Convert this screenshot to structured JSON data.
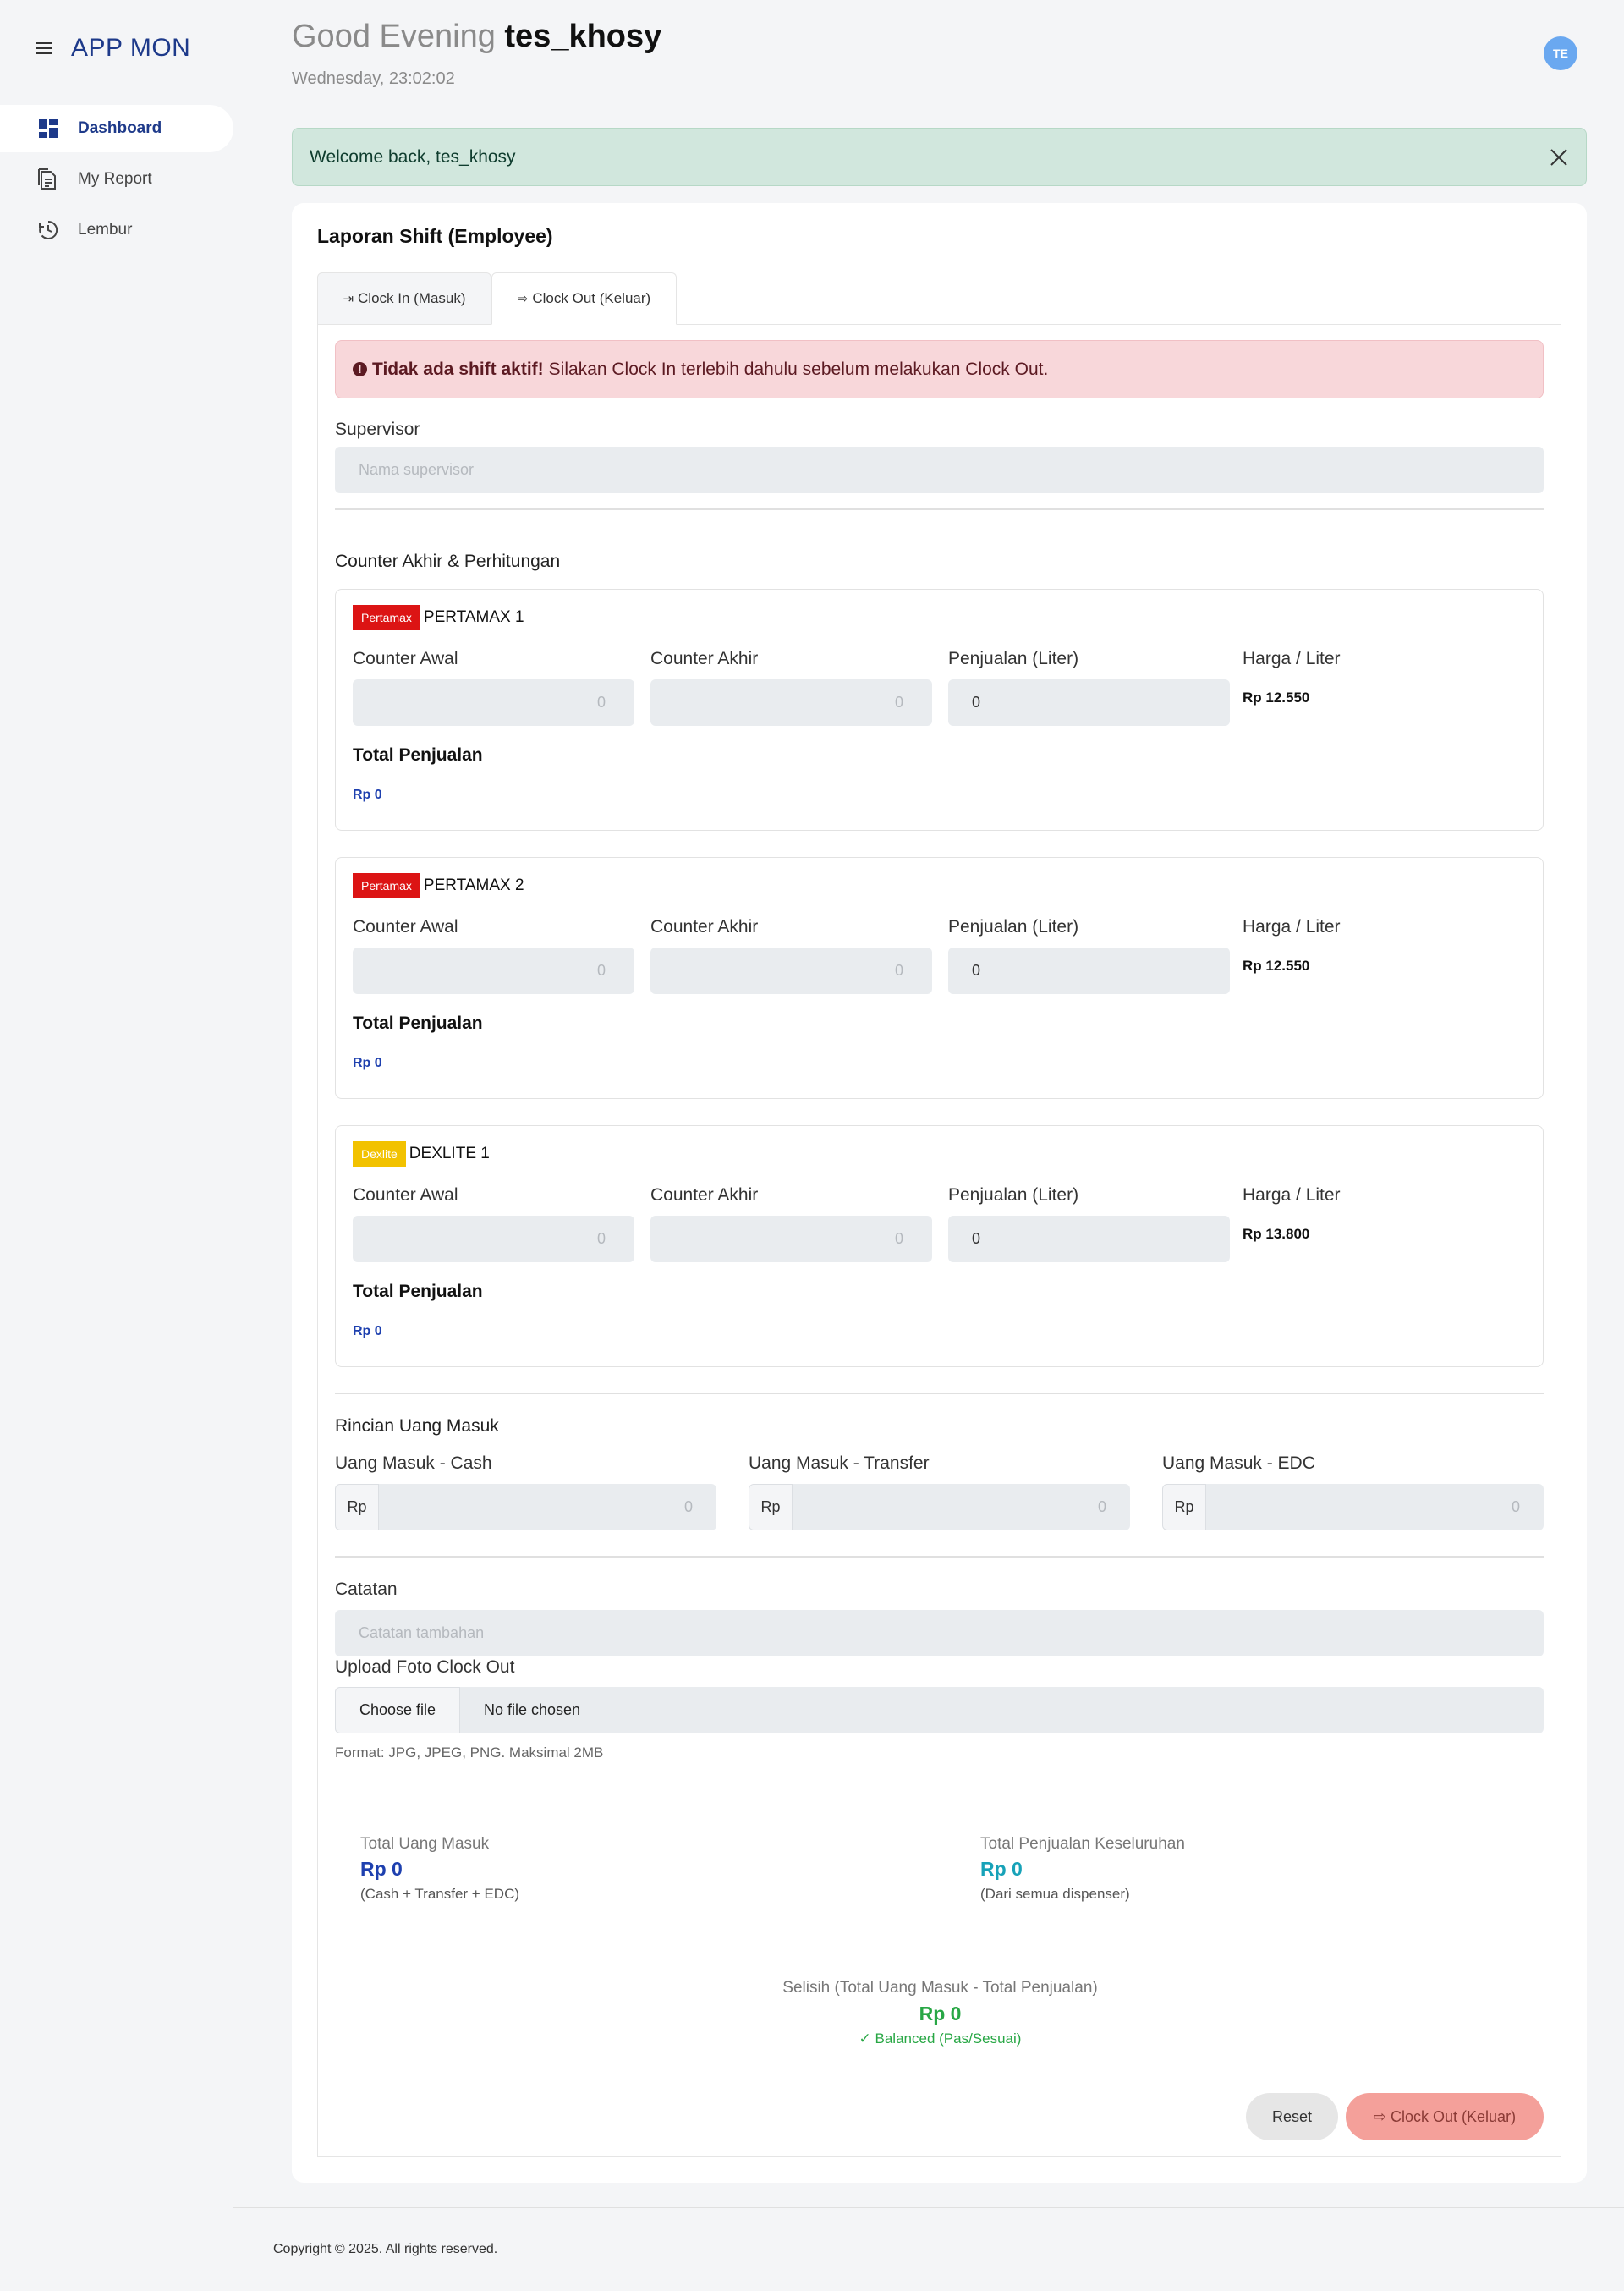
{
  "app": {
    "brand": "APP MON"
  },
  "sidebar": {
    "items": [
      {
        "label": "Dashboard",
        "icon": "dashboard-icon",
        "active": true
      },
      {
        "label": "My Report",
        "icon": "report-icon",
        "active": false
      },
      {
        "label": "Lembur",
        "icon": "clock-history-icon",
        "active": false
      }
    ]
  },
  "header": {
    "greeting_prefix": "Good Evening",
    "username": "tes_khosy",
    "datetime": "Wednesday, 23:02:02",
    "avatar_initials": "TE"
  },
  "welcome_alert": {
    "text": "Welcome back, tes_khosy"
  },
  "card": {
    "title": "Laporan Shift (Employee)",
    "tabs": [
      {
        "label": "Clock In (Masuk)",
        "icon": "⇥"
      },
      {
        "label": "Clock Out (Keluar)",
        "icon": "⇨"
      }
    ]
  },
  "error_alert": {
    "bold": "Tidak ada shift aktif!",
    "text": "Silakan Clock In terlebih dahulu sebelum melakukan Clock Out."
  },
  "supervisor": {
    "label": "Supervisor",
    "placeholder": "Nama supervisor"
  },
  "counter_section": {
    "title": "Counter Akhir & Perhitungan"
  },
  "dispenser_labels": {
    "counter_awal": "Counter Awal",
    "counter_akhir": "Counter Akhir",
    "penjualan": "Penjualan (Liter)",
    "harga": "Harga / Liter",
    "total": "Total Penjualan"
  },
  "dispensers": [
    {
      "badge": "Pertamax",
      "name": "PERTAMAX 1",
      "counter_awal": "0",
      "counter_akhir": "0",
      "penjualan": "0",
      "harga": "Rp 12.550",
      "total": "Rp 0",
      "badge_color": "#dc1414"
    },
    {
      "badge": "Pertamax",
      "name": "PERTAMAX 2",
      "counter_awal": "0",
      "counter_akhir": "0",
      "penjualan": "0",
      "harga": "Rp 12.550",
      "total": "Rp 0",
      "badge_color": "#dc1414"
    },
    {
      "badge": "Dexlite",
      "name": "DEXLITE 1",
      "counter_awal": "0",
      "counter_akhir": "0",
      "penjualan": "0",
      "harga": "Rp 13.800",
      "total": "Rp 0",
      "badge_color": "#f2c200"
    }
  ],
  "money_section": {
    "title": "Rincian Uang Masuk",
    "prefix": "Rp",
    "fields": [
      {
        "label": "Uang Masuk - Cash",
        "placeholder": "0"
      },
      {
        "label": "Uang Masuk - Transfer",
        "placeholder": "0"
      },
      {
        "label": "Uang Masuk - EDC",
        "placeholder": "0"
      }
    ]
  },
  "notes": {
    "label": "Catatan",
    "placeholder": "Catatan tambahan"
  },
  "upload": {
    "label": "Upload Foto Clock Out",
    "choose": "Choose file",
    "status": "No file chosen",
    "hint": "Format: JPG, JPEG, PNG. Maksimal 2MB"
  },
  "summary": {
    "total_uang_label": "Total Uang Masuk",
    "total_uang_value": "Rp 0",
    "total_uang_note": "(Cash + Transfer + EDC)",
    "total_penjualan_label": "Total Penjualan Keseluruhan",
    "total_penjualan_value": "Rp 0",
    "total_penjualan_note": "(Dari semua dispenser)",
    "selisih_label": "Selisih (Total Uang Masuk - Total Penjualan)",
    "selisih_value": "Rp 0",
    "selisih_status": "✓ Balanced (Pas/Sesuai)",
    "colors": {
      "uang": "#1e40af",
      "penjualan": "#17a2b8",
      "balanced": "#28a745"
    }
  },
  "buttons": {
    "reset": "Reset",
    "clock_out": "Clock Out (Keluar)"
  },
  "footer": {
    "text": "Copyright © 2025. All rights reserved."
  }
}
